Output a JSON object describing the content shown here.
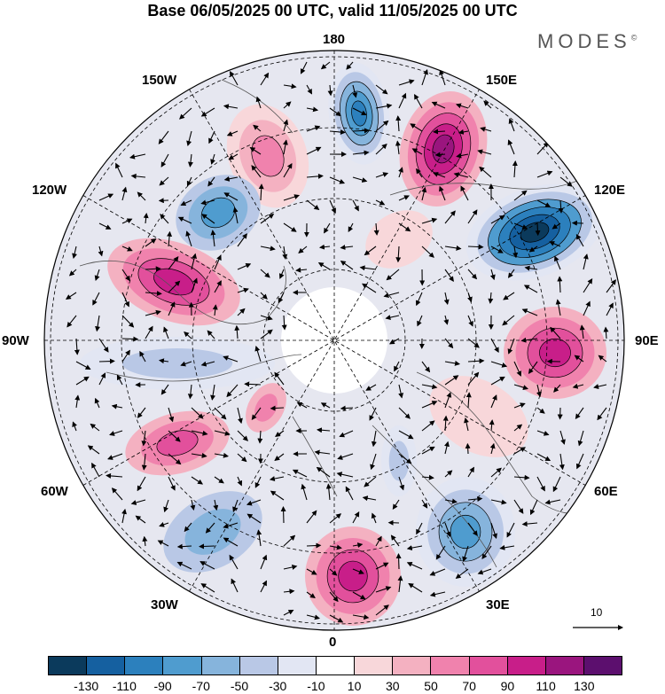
{
  "title": "Base 06/05/2025 00 UTC, valid 11/05/2025 00 UTC",
  "brand": "MODES",
  "brand_mark": "©",
  "longitude_labels": {
    "lon_180": "180",
    "lon_150e": "150E",
    "lon_120e": "120E",
    "lon_90e": "90E",
    "lon_60e": "60E",
    "lon_30e": "30E",
    "lon_0": "0",
    "lon_30w": "30W",
    "lon_60w": "60W",
    "lon_90w": "90W",
    "lon_120w": "120W",
    "lon_150w": "150W"
  },
  "vector_scale": {
    "value": "10"
  },
  "colorbar": {
    "colors": [
      "#0b3a5c",
      "#1560a0",
      "#2c80bd",
      "#4f9ccf",
      "#86b4dc",
      "#b9c8e6",
      "#e2e6f3",
      "#ffffff",
      "#f8d7da",
      "#f4b1c1",
      "#f082ad",
      "#e2509c",
      "#c81e89",
      "#9a157e",
      "#5c0f6e"
    ],
    "labels": [
      "-130",
      "-110",
      "-90",
      "-70",
      "-50",
      "-30",
      "-10",
      "10",
      "30",
      "50",
      "70",
      "90",
      "110",
      "130"
    ]
  }
}
